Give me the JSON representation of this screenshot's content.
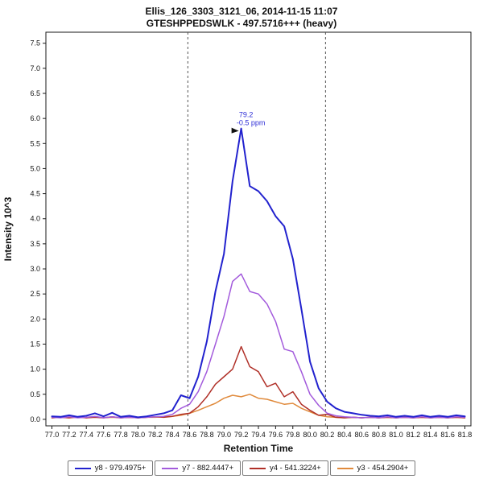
{
  "header": {
    "line1": "Ellis_126_3303_3121_06, 2014-11-15 11:07",
    "line2": "GTESHPPEDSWLK - 497.5716+++ (heavy)"
  },
  "chart_data": {
    "type": "line",
    "title": "Ellis_126_3303_3121_06, 2014-11-15 11:07",
    "subtitle": "GTESHPPEDSWLK - 497.5716+++ (heavy)",
    "xlabel": "Retention Time",
    "ylabel": "Intensity 10^3",
    "xlim": [
      76.93,
      81.87
    ],
    "ylim": [
      -0.13,
      7.72
    ],
    "grid": false,
    "legend_position": "bottom",
    "x_ticks": [
      77.0,
      77.2,
      77.4,
      77.6,
      77.8,
      78.0,
      78.2,
      78.4,
      78.6,
      78.8,
      79.0,
      79.2,
      79.4,
      79.6,
      79.8,
      80.0,
      80.2,
      80.4,
      80.6,
      80.8,
      81.0,
      81.2,
      81.4,
      81.6,
      81.8
    ],
    "y_ticks": [
      0.0,
      0.5,
      1.0,
      1.5,
      2.0,
      2.5,
      3.0,
      3.5,
      4.0,
      4.5,
      5.0,
      5.5,
      6.0,
      6.5,
      7.0,
      7.5
    ],
    "boundaries": [
      78.58,
      80.18
    ],
    "annotation": {
      "x": 79.2,
      "y": 5.8,
      "label": "79.2",
      "sublabel": "-0.5 ppm",
      "color": "#2b2bd6"
    },
    "x": [
      77.0,
      77.1,
      77.2,
      77.3,
      77.4,
      77.5,
      77.6,
      77.7,
      77.8,
      77.9,
      78.0,
      78.1,
      78.2,
      78.3,
      78.4,
      78.5,
      78.6,
      78.7,
      78.8,
      78.9,
      79.0,
      79.1,
      79.2,
      79.3,
      79.4,
      79.5,
      79.6,
      79.7,
      79.8,
      79.9,
      80.0,
      80.1,
      80.2,
      80.3,
      80.4,
      80.5,
      80.6,
      80.7,
      80.8,
      80.9,
      81.0,
      81.1,
      81.2,
      81.3,
      81.4,
      81.5,
      81.6,
      81.7,
      81.8
    ],
    "series": [
      {
        "name": "y8 - 979.4975+",
        "color": "#2222CE",
        "values": [
          0.06,
          0.05,
          0.08,
          0.05,
          0.07,
          0.12,
          0.06,
          0.13,
          0.05,
          0.07,
          0.04,
          0.06,
          0.09,
          0.12,
          0.18,
          0.48,
          0.42,
          0.85,
          1.55,
          2.55,
          3.3,
          4.75,
          5.8,
          4.65,
          4.55,
          4.35,
          4.05,
          3.85,
          3.2,
          2.2,
          1.15,
          0.62,
          0.35,
          0.22,
          0.15,
          0.12,
          0.09,
          0.07,
          0.06,
          0.08,
          0.05,
          0.07,
          0.05,
          0.08,
          0.05,
          0.07,
          0.05,
          0.08,
          0.06
        ]
      },
      {
        "name": "y7 - 882.4447+",
        "color": "#A35BDC",
        "values": [
          0.04,
          0.03,
          0.05,
          0.03,
          0.04,
          0.06,
          0.03,
          0.05,
          0.03,
          0.04,
          0.03,
          0.04,
          0.05,
          0.06,
          0.1,
          0.22,
          0.3,
          0.55,
          0.95,
          1.5,
          2.05,
          2.75,
          2.9,
          2.55,
          2.5,
          2.3,
          1.95,
          1.4,
          1.35,
          0.95,
          0.5,
          0.28,
          0.12,
          0.07,
          0.05,
          0.04,
          0.03,
          0.04,
          0.03,
          0.05,
          0.03,
          0.04,
          0.03,
          0.05,
          0.03,
          0.04,
          0.03,
          0.05,
          0.04
        ]
      },
      {
        "name": "y4 - 541.3224+",
        "color": "#B03028",
        "values": [
          0.03,
          0.04,
          0.03,
          0.05,
          0.03,
          0.04,
          0.03,
          0.05,
          0.03,
          0.04,
          0.03,
          0.04,
          0.05,
          0.04,
          0.06,
          0.1,
          0.12,
          0.25,
          0.45,
          0.7,
          0.85,
          1.0,
          1.45,
          1.05,
          0.95,
          0.65,
          0.72,
          0.45,
          0.55,
          0.3,
          0.18,
          0.08,
          0.1,
          0.04,
          0.03,
          0.04,
          0.03,
          0.04,
          0.03,
          0.04,
          0.03,
          0.04,
          0.03,
          0.04,
          0.03,
          0.04,
          0.03,
          0.04,
          0.03
        ]
      },
      {
        "name": "y3 - 454.2904+",
        "color": "#E08A3C",
        "values": [
          0.03,
          0.04,
          0.03,
          0.04,
          0.03,
          0.05,
          0.03,
          0.04,
          0.03,
          0.04,
          0.03,
          0.04,
          0.04,
          0.05,
          0.06,
          0.08,
          0.12,
          0.18,
          0.25,
          0.32,
          0.42,
          0.48,
          0.45,
          0.5,
          0.42,
          0.4,
          0.35,
          0.3,
          0.32,
          0.22,
          0.15,
          0.08,
          0.05,
          0.04,
          0.03,
          0.04,
          0.03,
          0.04,
          0.03,
          0.04,
          0.03,
          0.04,
          0.03,
          0.04,
          0.03,
          0.04,
          0.03,
          0.04,
          0.03
        ]
      }
    ]
  }
}
